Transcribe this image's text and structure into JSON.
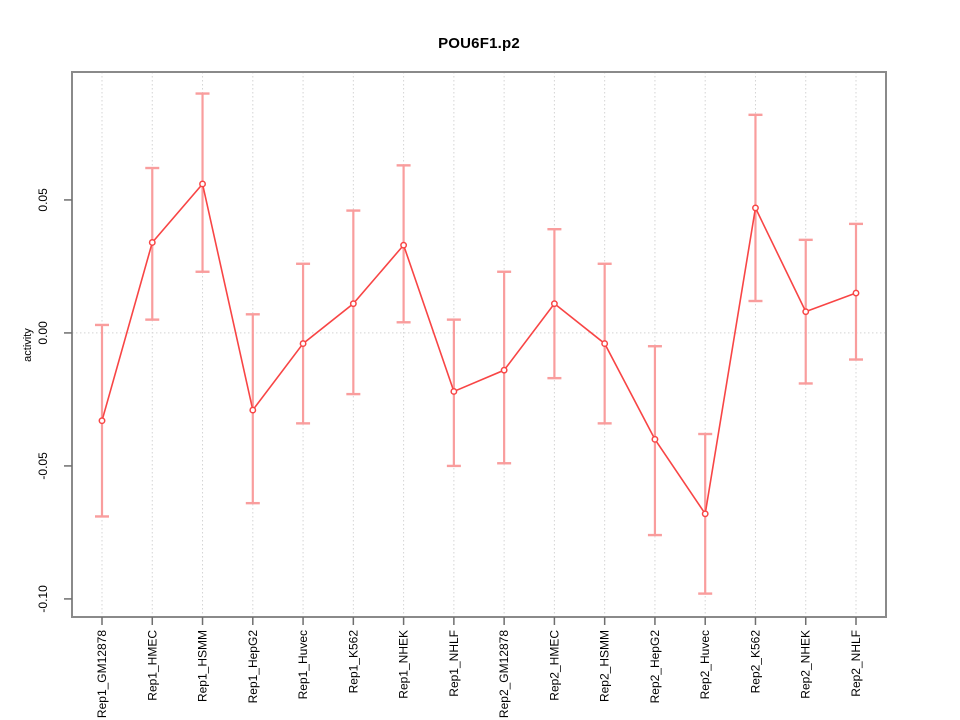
{
  "chart_data": {
    "type": "line",
    "title": "POU6F1.p2",
    "xlabel": "",
    "ylabel": "activity",
    "legend_position": "none",
    "categories": [
      "Rep1_GM12878",
      "Rep1_HMEC",
      "Rep1_HSMM",
      "Rep1_HepG2",
      "Rep1_Huvec",
      "Rep1_K562",
      "Rep1_NHEK",
      "Rep1_NHLF",
      "Rep2_GM12878",
      "Rep2_HMEC",
      "Rep2_HSMM",
      "Rep2_HepG2",
      "Rep2_Huvec",
      "Rep2_K562",
      "Rep2_NHEK",
      "Rep2_NHLF"
    ],
    "series": [
      {
        "name": "activity",
        "values": [
          -0.033,
          0.034,
          0.056,
          -0.029,
          -0.004,
          0.011,
          0.033,
          -0.022,
          -0.014,
          0.011,
          -0.004,
          -0.04,
          -0.068,
          0.047,
          0.008,
          0.015
        ],
        "ci_upper": [
          0.003,
          0.062,
          0.09,
          0.007,
          0.026,
          0.046,
          0.063,
          0.005,
          0.023,
          0.039,
          0.026,
          -0.005,
          -0.038,
          0.082,
          0.035,
          0.041
        ],
        "ci_lower": [
          -0.069,
          0.005,
          0.023,
          -0.064,
          -0.034,
          -0.023,
          0.004,
          -0.05,
          -0.049,
          -0.017,
          -0.034,
          -0.076,
          -0.098,
          0.012,
          -0.019,
          -0.01
        ]
      }
    ],
    "ylim": [
      -0.1068,
      0.0981
    ],
    "yticks": [
      {
        "value": -0.1,
        "label": "-0.10"
      },
      {
        "value": -0.05,
        "label": "-0.05"
      },
      {
        "value": 0.0,
        "label": "0.00"
      },
      {
        "value": 0.05,
        "label": "0.05"
      }
    ],
    "grid": {
      "vertical_dotted": true,
      "horizontal_zero_line_dotted": true
    },
    "colors": {
      "line": "#f84545",
      "marker_stroke": "#f84545",
      "marker_fill": "#ffffff",
      "error_bar": "#f99d9d",
      "grid": "#d4d4d4",
      "zero_line": "#d4d4d4",
      "box_border": "#8a8a8a",
      "tick": "#6e6e6e",
      "text": "#000000",
      "background": "#ffffff"
    }
  }
}
